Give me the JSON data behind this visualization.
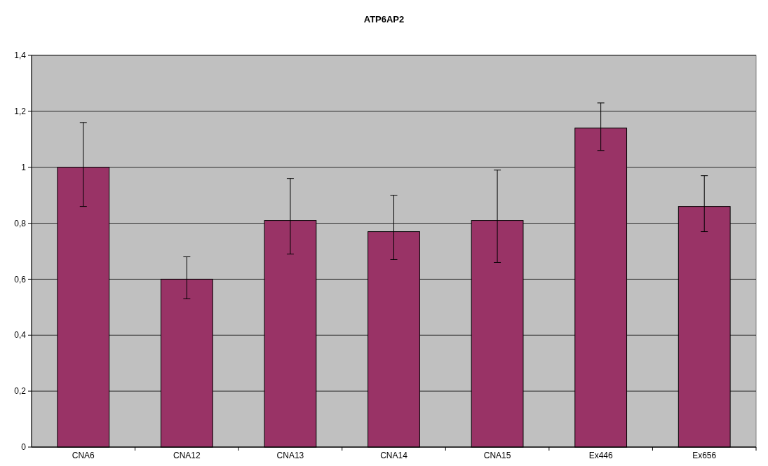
{
  "chart_data": {
    "type": "bar",
    "title": "ATP6AP2",
    "categories": [
      "CNA6",
      "CNA12",
      "CNA13",
      "CNA14",
      "CNA15",
      "Ex446",
      "Ex656"
    ],
    "values": [
      1.0,
      0.6,
      0.81,
      0.77,
      0.81,
      1.14,
      0.86
    ],
    "errors": [
      [
        0.86,
        1.16
      ],
      [
        0.53,
        0.68
      ],
      [
        0.69,
        0.96
      ],
      [
        0.67,
        0.9
      ],
      [
        0.66,
        0.99
      ],
      [
        1.06,
        1.23
      ],
      [
        0.77,
        0.97
      ]
    ],
    "color": "#993366",
    "ylim": [
      0,
      1.4
    ],
    "yticks": [
      0,
      {
        "value": 0.2,
        "label": "0,2"
      },
      {
        "value": 0.4,
        "label": "0,4"
      },
      {
        "value": 0.6,
        "label": "0,6"
      },
      {
        "value": 0.8,
        "label": "0,8"
      },
      1,
      {
        "value": 1.2,
        "label": "1,2"
      },
      {
        "value": 1.4,
        "label": "1,4"
      }
    ],
    "grid": "y"
  }
}
